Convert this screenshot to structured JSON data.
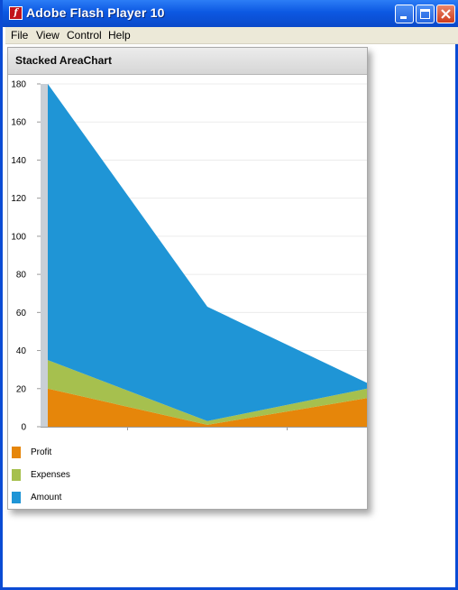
{
  "window": {
    "title": "Adobe Flash Player 10",
    "app_icon": "flash-icon"
  },
  "menubar": {
    "items": [
      "File",
      "View",
      "Control",
      "Help"
    ]
  },
  "panel": {
    "title": "Stacked AreaChart"
  },
  "colors": {
    "profit": "#e6860a",
    "expenses": "#a6c04e",
    "amount": "#1f95d6"
  },
  "chart_data": {
    "type": "area",
    "stacked": true,
    "categories": [
      "",
      "",
      ""
    ],
    "ylim": [
      0,
      180
    ],
    "yticks": [
      0,
      20,
      40,
      60,
      80,
      100,
      120,
      140,
      160,
      180
    ],
    "grid": true,
    "legend": "bottom-left",
    "series": [
      {
        "name": "Profit",
        "values": [
          20,
          1,
          15
        ]
      },
      {
        "name": "Expenses",
        "values": [
          15,
          2,
          5
        ]
      },
      {
        "name": "Amount",
        "values": [
          145,
          60,
          3
        ]
      }
    ]
  }
}
